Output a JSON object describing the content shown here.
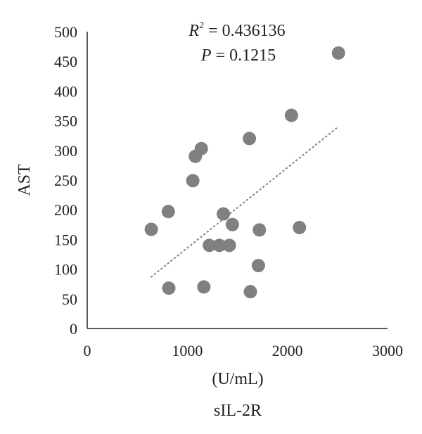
{
  "chart_data": {
    "type": "scatter",
    "title": "",
    "xlabel": "(U/mL)",
    "xlabel_sub": "sIL-2R",
    "ylabel": "AST",
    "xlim": [
      0,
      3000
    ],
    "ylim": [
      0,
      500
    ],
    "xticks": [
      0,
      1000,
      2000,
      3000
    ],
    "yticks": [
      0,
      50,
      100,
      150,
      200,
      250,
      300,
      350,
      400,
      450,
      500
    ],
    "grid": false,
    "marker_color": "#808080",
    "trendline_color": "#808080",
    "annotations": {
      "r2_var": "R",
      "r2_sup": "2",
      "r2_rest": " = 0.436136",
      "p_var": "P",
      "p_rest": " = 0.1215"
    },
    "points": [
      {
        "x": 640,
        "y": 167
      },
      {
        "x": 810,
        "y": 197
      },
      {
        "x": 815,
        "y": 68
      },
      {
        "x": 1055,
        "y": 249
      },
      {
        "x": 1080,
        "y": 290
      },
      {
        "x": 1140,
        "y": 303
      },
      {
        "x": 1165,
        "y": 70
      },
      {
        "x": 1220,
        "y": 140
      },
      {
        "x": 1320,
        "y": 140
      },
      {
        "x": 1360,
        "y": 193
      },
      {
        "x": 1420,
        "y": 140
      },
      {
        "x": 1450,
        "y": 175
      },
      {
        "x": 1620,
        "y": 320
      },
      {
        "x": 1630,
        "y": 62
      },
      {
        "x": 1710,
        "y": 106
      },
      {
        "x": 1720,
        "y": 166
      },
      {
        "x": 2040,
        "y": 359
      },
      {
        "x": 2120,
        "y": 170
      },
      {
        "x": 2510,
        "y": 464
      }
    ],
    "trendline": {
      "x": [
        640,
        2510
      ],
      "y": [
        87,
        340
      ]
    }
  }
}
